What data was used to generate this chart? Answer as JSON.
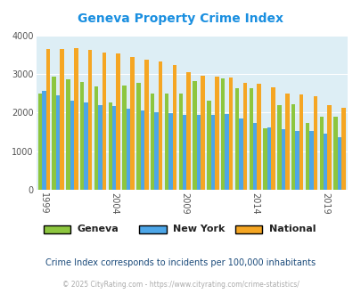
{
  "title": "Geneva Property Crime Index",
  "title_color": "#1a8fe0",
  "subtitle": "Crime Index corresponds to incidents per 100,000 inhabitants",
  "footer": "© 2025 CityRating.com - https://www.cityrating.com/crime-statistics/",
  "years": [
    1999,
    2000,
    2001,
    2002,
    2003,
    2004,
    2005,
    2006,
    2007,
    2008,
    2009,
    2010,
    2011,
    2012,
    2013,
    2014,
    2015,
    2016,
    2017,
    2018,
    2019,
    2020
  ],
  "geneva": [
    2500,
    2930,
    2870,
    2780,
    2680,
    2260,
    2700,
    2760,
    2500,
    2500,
    2480,
    2820,
    2310,
    2890,
    2620,
    2630,
    1590,
    2200,
    2220,
    1720,
    1880,
    1900
  ],
  "newyork": [
    2560,
    2440,
    2310,
    2250,
    2200,
    2170,
    2100,
    2050,
    2010,
    1990,
    1940,
    1930,
    1930,
    1950,
    1850,
    1730,
    1620,
    1570,
    1530,
    1510,
    1460,
    1360
  ],
  "national": [
    3640,
    3650,
    3660,
    3630,
    3560,
    3520,
    3440,
    3360,
    3310,
    3230,
    3050,
    2960,
    2940,
    2900,
    2760,
    2740,
    2650,
    2500,
    2470,
    2410,
    2190,
    2110
  ],
  "geneva_color": "#8dc63f",
  "newyork_color": "#4da6e8",
  "national_color": "#f5a623",
  "bg_color": "#ddeef5",
  "ylim": [
    0,
    4000
  ],
  "yticks": [
    0,
    1000,
    2000,
    3000,
    4000
  ],
  "xtick_years": [
    1999,
    2004,
    2009,
    2014,
    2019
  ],
  "bar_width": 0.28,
  "legend_labels": [
    "Geneva",
    "New York",
    "National"
  ],
  "legend_colors": [
    "#8dc63f",
    "#4da6e8",
    "#f5a623"
  ]
}
